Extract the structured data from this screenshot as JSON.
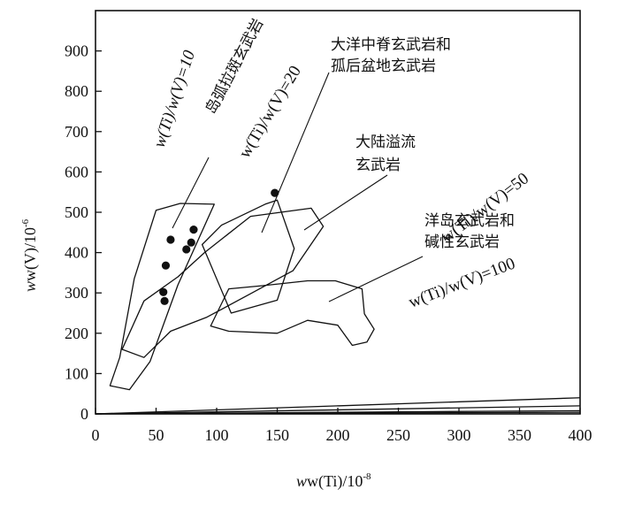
{
  "chart_data": {
    "type": "scatter",
    "title": "",
    "xlabel_main": "w(Ti)/10",
    "xlabel_sup": "-8",
    "ylabel_main": "w(V)/10",
    "ylabel_sup": "-6",
    "xlim": [
      0,
      400
    ],
    "ylim": [
      0,
      1000
    ],
    "x_ticks": [
      0,
      50,
      100,
      150,
      200,
      250,
      300,
      350,
      400
    ],
    "y_ticks": [
      0,
      100,
      200,
      300,
      400,
      500,
      600,
      700,
      800,
      900
    ],
    "x_tick_labels": [
      "0",
      "50",
      "100",
      "150",
      "200",
      "250",
      "300",
      "350",
      "400"
    ],
    "y_tick_labels": [
      "0",
      "100",
      "200",
      "300",
      "400",
      "500",
      "600",
      "700",
      "800",
      "900"
    ],
    "grid": false,
    "points": [
      {
        "x": 57,
        "y": 280
      },
      {
        "x": 56,
        "y": 302
      },
      {
        "x": 58,
        "y": 368
      },
      {
        "x": 62,
        "y": 432
      },
      {
        "x": 75,
        "y": 408
      },
      {
        "x": 79,
        "y": 425
      },
      {
        "x": 81,
        "y": 457
      },
      {
        "x": 148,
        "y": 548
      }
    ],
    "ratio_lines": [
      {
        "ratio": 10,
        "label": "w(Ti)/w(V)=10"
      },
      {
        "ratio": 20,
        "label": "w(Ti)/w(V)=20"
      },
      {
        "ratio": 50,
        "label": "w(Ti)/w(V)=50"
      },
      {
        "ratio": 100,
        "label": "w(Ti)/w(V)=100"
      }
    ],
    "fields": [
      {
        "name": "岛弧拉斑玄武岩",
        "polygon": [
          [
            12,
            70
          ],
          [
            20,
            140
          ],
          [
            32,
            335
          ],
          [
            50,
            505
          ],
          [
            70,
            522
          ],
          [
            98,
            520
          ],
          [
            68,
            320
          ],
          [
            45,
            130
          ],
          [
            28,
            60
          ],
          [
            12,
            70
          ]
        ]
      },
      {
        "name": "大洋中脊玄武岩和孤后盆地玄武岩",
        "polygon": [
          [
            22,
            160
          ],
          [
            40,
            280
          ],
          [
            68,
            340
          ],
          [
            90,
            400
          ],
          [
            128,
            490
          ],
          [
            178,
            510
          ],
          [
            188,
            465
          ],
          [
            163,
            355
          ],
          [
            128,
            298
          ],
          [
            92,
            240
          ],
          [
            62,
            205
          ],
          [
            40,
            140
          ],
          [
            22,
            160
          ]
        ]
      },
      {
        "name": "大陆溢流玄武岩",
        "polygon": [
          [
            88,
            420
          ],
          [
            104,
            468
          ],
          [
            140,
            520
          ],
          [
            150,
            530
          ],
          [
            164,
            410
          ],
          [
            150,
            282
          ],
          [
            112,
            250
          ],
          [
            88,
            420
          ]
        ]
      },
      {
        "name": "洋岛玄武岩和碱性玄武岩",
        "polygon": [
          [
            110,
            310
          ],
          [
            138,
            318
          ],
          [
            175,
            330
          ],
          [
            198,
            330
          ],
          [
            220,
            310
          ],
          [
            222,
            248
          ],
          [
            230,
            210
          ],
          [
            224,
            178
          ],
          [
            212,
            170
          ],
          [
            200,
            220
          ],
          [
            175,
            232
          ],
          [
            150,
            200
          ],
          [
            110,
            205
          ],
          [
            95,
            218
          ],
          [
            110,
            310
          ]
        ]
      }
    ],
    "annotations": [
      {
        "text": "岛弧拉斑玄武岩",
        "lines": [
          "岛弧拉斑玄武岩"
        ]
      },
      {
        "text": "大洋中脊玄武岩和孤后盆地玄武岩",
        "lines": [
          "大洋中脊玄武岩和",
          "孤后盆地玄武岩"
        ]
      },
      {
        "text": "大陆溢流玄武岩",
        "lines": [
          "大陆溢流",
          "玄武岩"
        ]
      },
      {
        "text": "洋岛玄武岩和碱性玄武岩",
        "lines": [
          "洋岛玄武岩和",
          "碱性玄武岩"
        ]
      }
    ]
  }
}
